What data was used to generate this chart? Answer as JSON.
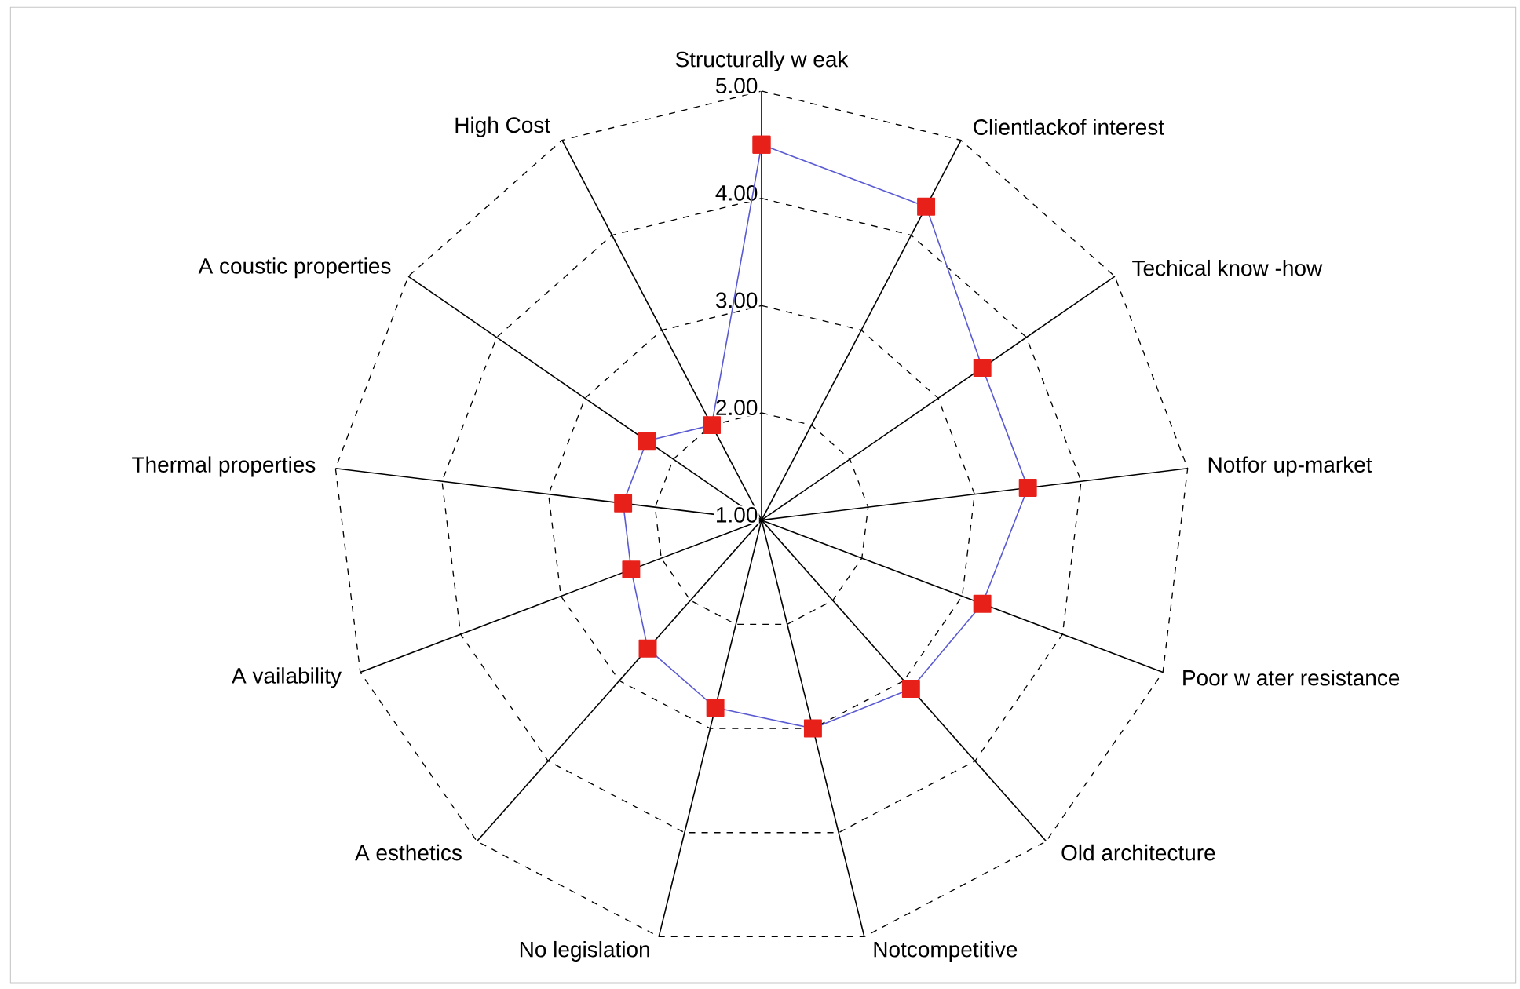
{
  "chart_data": {
    "type": "radar",
    "categories": [
      "Structurally w eak",
      "Clientlackof interest",
      "Techical know -how",
      "Notfor up-market",
      "Poor w ater resistance",
      "Old architecture",
      "Notcompetitive",
      "No legislation",
      "A esthetics",
      "A vailability",
      "Thermal properties",
      "A coustic properties",
      "High Cost"
    ],
    "series": [
      {
        "color": "#5a5ad2",
        "values": [
          4.5,
          4.3,
          3.5,
          3.5,
          3.2,
          3.1,
          3.0,
          2.8,
          2.6,
          2.3,
          2.3,
          2.3,
          2.0
        ]
      }
    ],
    "ylim": [
      1,
      5
    ],
    "yticks": [
      {
        "value": 1,
        "label": "1.00"
      },
      {
        "value": 2,
        "label": "2.00"
      },
      {
        "value": 3,
        "label": "3.00"
      },
      {
        "value": 4,
        "label": "4.00"
      },
      {
        "value": 5,
        "label": "5.00"
      }
    ],
    "grid": true,
    "marker": "square",
    "legend": false
  }
}
